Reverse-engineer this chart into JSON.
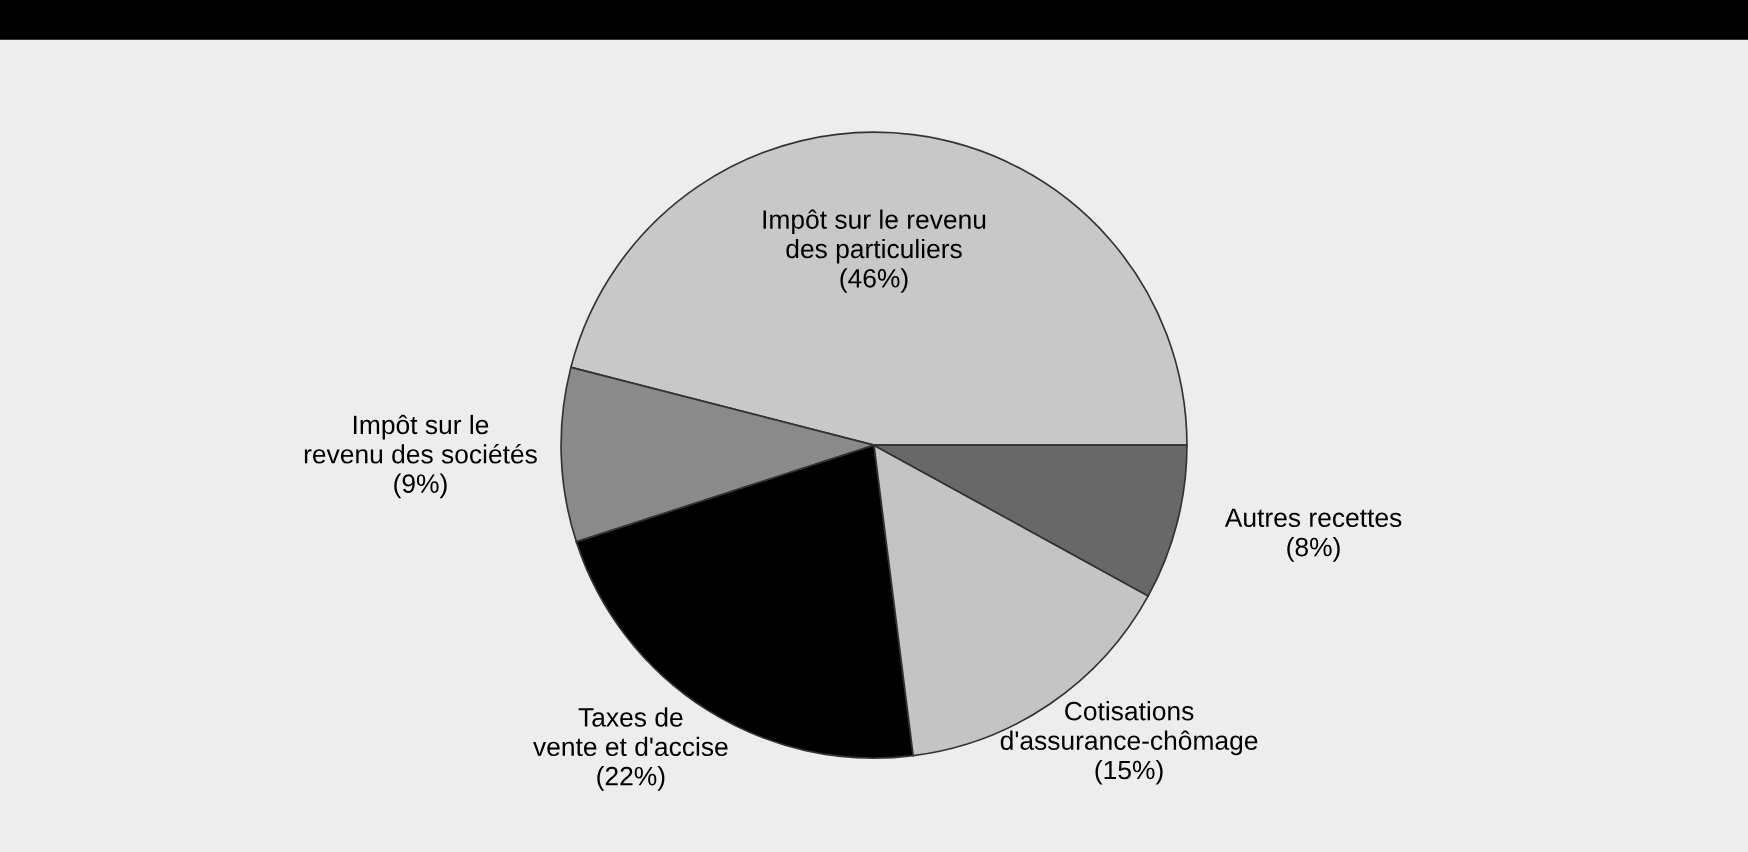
{
  "chart_data": {
    "type": "pie",
    "categories": [
      "Impôt sur le revenu\ndes particuliers",
      "Impôt sur le\nrevenu des sociétés",
      "Taxes de\nvente et d'accise",
      "Cotisations\nd'assurance-chômage",
      "Autres recettes"
    ],
    "values": [
      46,
      9,
      22,
      15,
      8
    ],
    "value_labels": [
      "(46%)",
      "(9%)",
      "(22%)",
      "(15%)",
      "(8%)"
    ],
    "colors": [
      "#c8c8c8",
      "#8a8a8a",
      "#000000",
      "#c4c4c4",
      "#686868"
    ],
    "legend": false
  }
}
